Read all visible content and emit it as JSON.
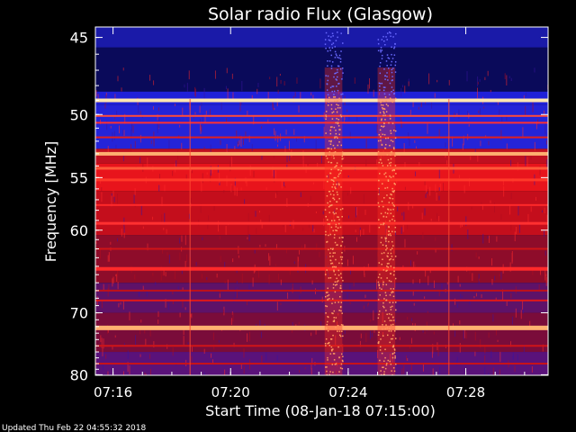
{
  "footer": {
    "updated_text": "Updated Thu Feb 22 04:55:32 2018"
  },
  "chart_data": {
    "type": "heatmap",
    "title": "Solar radio Flux (Glasgow)",
    "xlabel": "Start Time (08-Jan-18 07:15:00)",
    "ylabel": "Frequency [MHz]",
    "x_tick_labels": [
      "07:16",
      "07:20",
      "07:24",
      "07:28"
    ],
    "x_tick_minutes": [
      1,
      5,
      9,
      13
    ],
    "xlim_minutes": [
      0.4,
      15.8
    ],
    "y_ticks": [
      45,
      50,
      55,
      60,
      70,
      80
    ],
    "ylim": [
      44.4,
      80.1
    ],
    "y_scale": "reciprocal",
    "colors": {
      "background": "#000000",
      "axis": "#ffffff",
      "deep_blue": "#0a0a6e",
      "blue": "#2a2ae0",
      "purple": "#4a1a8a",
      "dark_red": "#8a0a1a",
      "red": "#e01010",
      "orange": "#ff6a2a",
      "hot": "#ffe6b0"
    },
    "bands": [
      {
        "f0": 44.4,
        "f1": 45.6,
        "color": "#1a1aa8"
      },
      {
        "f0": 45.6,
        "f1": 48.4,
        "color": "#0a0a5a"
      },
      {
        "f0": 48.4,
        "f1": 49.3,
        "color": "#2020d8"
      },
      {
        "f0": 49.3,
        "f1": 52.6,
        "color": "#2424d8"
      },
      {
        "f0": 52.6,
        "f1": 53.8,
        "color": "#c01020"
      },
      {
        "f0": 53.8,
        "f1": 56.2,
        "color": "#e8141c"
      },
      {
        "f0": 56.2,
        "f1": 60.5,
        "color": "#c40e1c"
      },
      {
        "f0": 60.5,
        "f1": 66.0,
        "color": "#8e0c2a"
      },
      {
        "f0": 66.0,
        "f1": 70.0,
        "color": "#5e1268"
      },
      {
        "f0": 70.0,
        "f1": 76.0,
        "color": "#7a0c3a"
      },
      {
        "f0": 76.0,
        "f1": 80.1,
        "color": "#5a127a"
      }
    ],
    "lines": [
      {
        "f": 49.0,
        "color": "#ffe6b0",
        "width": 4
      },
      {
        "f": 50.1,
        "color": "#ff4a3a",
        "width": 2
      },
      {
        "f": 50.6,
        "color": "#ff3030",
        "width": 2
      },
      {
        "f": 51.7,
        "color": "#e02020",
        "width": 2
      },
      {
        "f": 53.0,
        "color": "#ffb070",
        "width": 4
      },
      {
        "f": 54.2,
        "color": "#ff5a3a",
        "width": 3
      },
      {
        "f": 55.2,
        "color": "#ff3a2a",
        "width": 3
      },
      {
        "f": 57.5,
        "color": "#ff2a2a",
        "width": 2
      },
      {
        "f": 59.3,
        "color": "#ff3030",
        "width": 3
      },
      {
        "f": 62.0,
        "color": "#d01418",
        "width": 2
      },
      {
        "f": 64.3,
        "color": "#ff2a2a",
        "width": 4
      },
      {
        "f": 67.0,
        "color": "#c01018",
        "width": 2
      },
      {
        "f": 68.3,
        "color": "#e01818",
        "width": 2
      },
      {
        "f": 72.2,
        "color": "#ffb070",
        "width": 5
      },
      {
        "f": 75.0,
        "color": "#d01418",
        "width": 2
      },
      {
        "f": 78.0,
        "color": "#c81218",
        "width": 2
      }
    ],
    "bursts": [
      {
        "t0": 8.2,
        "t1": 8.8,
        "color": "#ff9a60"
      },
      {
        "t0": 10.0,
        "t1": 10.6,
        "color": "#ff9a60"
      }
    ],
    "faint_columns": [
      {
        "t": 12.4,
        "color": "#ff4a30"
      },
      {
        "t": 3.6,
        "color": "#ff4a30"
      }
    ]
  }
}
